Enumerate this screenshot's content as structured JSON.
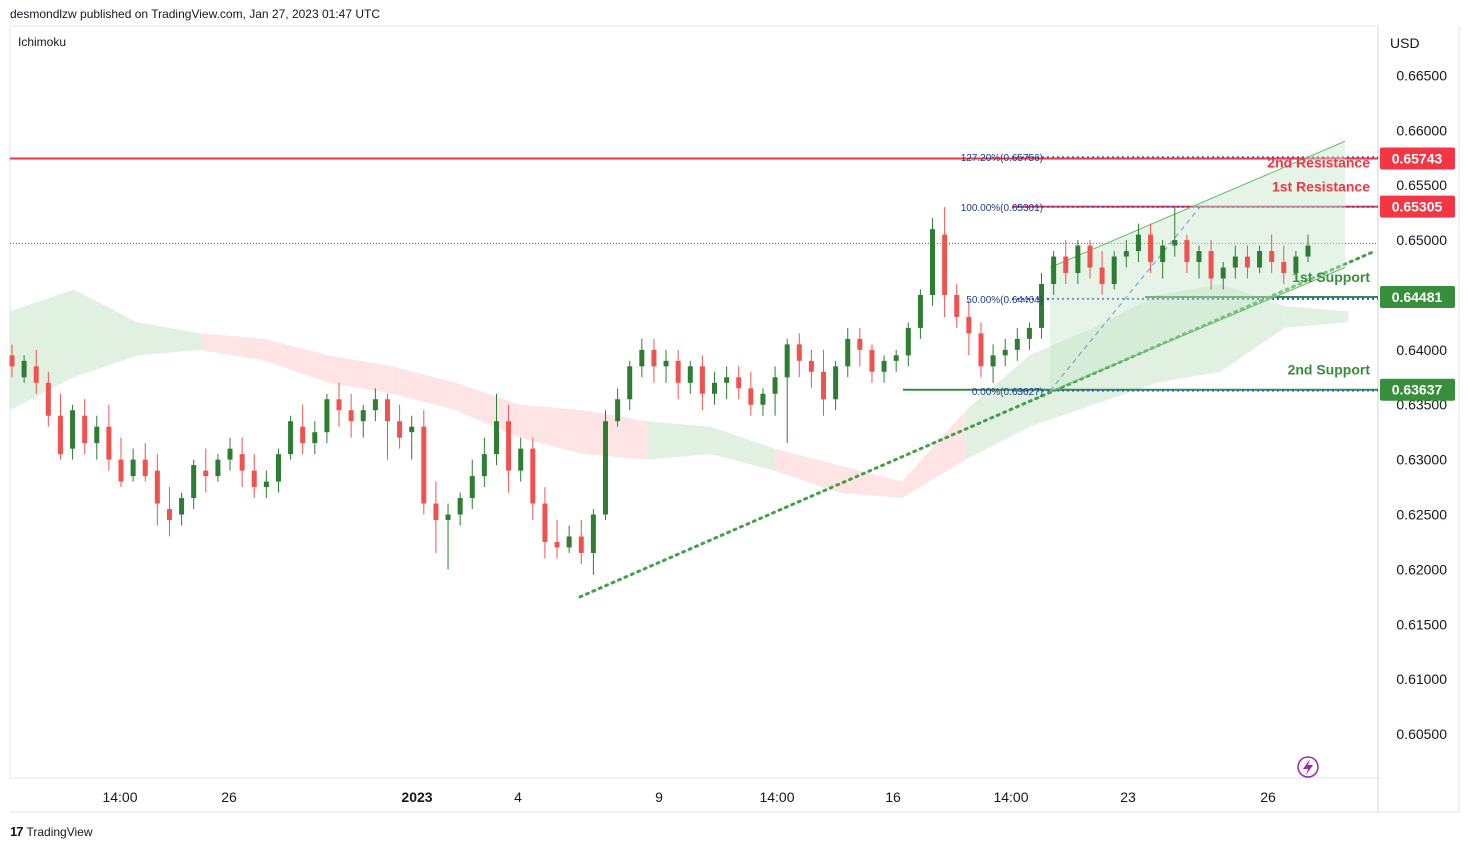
{
  "header": {
    "text": "desmondlzw published on TradingView.com, Jan 27, 2023 01:47 UTC"
  },
  "indicator": {
    "label": "Ichimoku"
  },
  "price_axis": {
    "currency": "USD",
    "ticks": [
      "0.66500",
      "0.66000",
      "0.65500",
      "0.65000",
      "0.64000",
      "0.63500",
      "0.63000",
      "0.62500",
      "0.62000",
      "0.61500",
      "0.61000",
      "0.60500"
    ]
  },
  "time_axis": {
    "labels": [
      "14:00",
      "26",
      "2023",
      "4",
      "9",
      "14:00",
      "16",
      "14:00",
      "23",
      "26"
    ]
  },
  "footer": {
    "brand": "TradingView"
  },
  "colors": {
    "up": "#2e7d32",
    "down": "#ef5350",
    "resistance": "#f23645",
    "support": "#388e3c",
    "fib": "#1e53e5",
    "cloud_green": "#c8e6c9",
    "cloud_red": "#ffcdd2"
  },
  "levels": {
    "r2": {
      "label": "2nd Resistance",
      "badge": "0.65743"
    },
    "r1": {
      "label": "1st Resistance",
      "badge": "0.65305"
    },
    "s1": {
      "label": "1st Support",
      "badge": "0.64481"
    },
    "s2": {
      "label": "2nd Support",
      "badge": "0.63637"
    }
  },
  "fib": {
    "f1272": "127.20%(0.65756)",
    "f100": "100.00%(0.65301)",
    "f50": "50.00%(0.64464)",
    "f0": "0.00%(0.63627)"
  },
  "chart_data": {
    "type": "candlestick",
    "symbol_currency": "USD",
    "y_range": [
      0.601,
      0.6695
    ],
    "series": [
      {
        "name": "",
        "values": [
          [
            0.6395,
            0.6405,
            0.6385,
            0.6375
          ],
          [
            0.6375,
            0.6395,
            0.639,
            0.637
          ],
          [
            0.6385,
            0.64,
            0.637,
            0.636
          ],
          [
            0.637,
            0.638,
            0.634,
            0.633
          ],
          [
            0.634,
            0.636,
            0.6305,
            0.63
          ],
          [
            0.631,
            0.635,
            0.6345,
            0.63
          ],
          [
            0.634,
            0.6355,
            0.6315,
            0.6305
          ],
          [
            0.6315,
            0.634,
            0.633,
            0.63
          ],
          [
            0.633,
            0.635,
            0.63,
            0.629
          ],
          [
            0.63,
            0.632,
            0.628,
            0.6275
          ],
          [
            0.6285,
            0.631,
            0.63,
            0.628
          ],
          [
            0.63,
            0.6315,
            0.6285,
            0.628
          ],
          [
            0.629,
            0.6305,
            0.626,
            0.624
          ],
          [
            0.6255,
            0.6275,
            0.6245,
            0.623
          ],
          [
            0.625,
            0.627,
            0.6265,
            0.624
          ],
          [
            0.6265,
            0.63,
            0.6295,
            0.6255
          ],
          [
            0.629,
            0.631,
            0.6285,
            0.627
          ],
          [
            0.6285,
            0.6305,
            0.63,
            0.628
          ],
          [
            0.63,
            0.632,
            0.631,
            0.629
          ],
          [
            0.6305,
            0.632,
            0.629,
            0.6275
          ],
          [
            0.629,
            0.6305,
            0.6275,
            0.6265
          ],
          [
            0.6275,
            0.629,
            0.628,
            0.6265
          ],
          [
            0.628,
            0.631,
            0.6305,
            0.627
          ],
          [
            0.6305,
            0.634,
            0.6335,
            0.63
          ],
          [
            0.633,
            0.635,
            0.6315,
            0.6305
          ],
          [
            0.6315,
            0.6335,
            0.6325,
            0.6305
          ],
          [
            0.6325,
            0.636,
            0.6355,
            0.6315
          ],
          [
            0.6355,
            0.637,
            0.6345,
            0.633
          ],
          [
            0.6345,
            0.636,
            0.6335,
            0.632
          ],
          [
            0.6335,
            0.635,
            0.6345,
            0.632
          ],
          [
            0.6345,
            0.6365,
            0.6355,
            0.6335
          ],
          [
            0.6355,
            0.636,
            0.6335,
            0.63
          ],
          [
            0.6335,
            0.635,
            0.632,
            0.631
          ],
          [
            0.6325,
            0.634,
            0.633,
            0.63
          ],
          [
            0.633,
            0.6345,
            0.626,
            0.625
          ],
          [
            0.626,
            0.628,
            0.6245,
            0.6215
          ],
          [
            0.6245,
            0.626,
            0.625,
            0.62
          ],
          [
            0.625,
            0.627,
            0.6265,
            0.624
          ],
          [
            0.6265,
            0.63,
            0.6285,
            0.6255
          ],
          [
            0.6285,
            0.632,
            0.6305,
            0.6275
          ],
          [
            0.6305,
            0.636,
            0.6335,
            0.6295
          ],
          [
            0.6335,
            0.635,
            0.629,
            0.627
          ],
          [
            0.629,
            0.632,
            0.631,
            0.628
          ],
          [
            0.631,
            0.632,
            0.626,
            0.6245
          ],
          [
            0.626,
            0.6275,
            0.6225,
            0.621
          ],
          [
            0.6225,
            0.6245,
            0.622,
            0.621
          ],
          [
            0.622,
            0.624,
            0.623,
            0.6215
          ],
          [
            0.623,
            0.6245,
            0.6215,
            0.6205
          ],
          [
            0.6215,
            0.6255,
            0.625,
            0.6195
          ],
          [
            0.625,
            0.6345,
            0.6335,
            0.6245
          ],
          [
            0.6335,
            0.6365,
            0.6355,
            0.633
          ],
          [
            0.6355,
            0.639,
            0.6385,
            0.6345
          ],
          [
            0.6385,
            0.641,
            0.64,
            0.6375
          ],
          [
            0.64,
            0.641,
            0.6385,
            0.637
          ],
          [
            0.6385,
            0.64,
            0.639,
            0.637
          ],
          [
            0.639,
            0.64,
            0.637,
            0.6355
          ],
          [
            0.637,
            0.639,
            0.6385,
            0.636
          ],
          [
            0.6385,
            0.6395,
            0.636,
            0.6345
          ],
          [
            0.636,
            0.638,
            0.637,
            0.635
          ],
          [
            0.637,
            0.6385,
            0.6375,
            0.6355
          ],
          [
            0.6375,
            0.6385,
            0.6365,
            0.6355
          ],
          [
            0.6365,
            0.638,
            0.635,
            0.634
          ],
          [
            0.635,
            0.6365,
            0.636,
            0.634
          ],
          [
            0.636,
            0.6385,
            0.6375,
            0.634
          ],
          [
            0.6375,
            0.641,
            0.6405,
            0.6315
          ],
          [
            0.6405,
            0.6415,
            0.639,
            0.6375
          ],
          [
            0.639,
            0.64,
            0.638,
            0.6365
          ],
          [
            0.638,
            0.64,
            0.6355,
            0.634
          ],
          [
            0.6355,
            0.639,
            0.6385,
            0.6345
          ],
          [
            0.6385,
            0.642,
            0.641,
            0.6375
          ],
          [
            0.641,
            0.642,
            0.64,
            0.6385
          ],
          [
            0.64,
            0.6405,
            0.638,
            0.637
          ],
          [
            0.638,
            0.6395,
            0.639,
            0.637
          ],
          [
            0.639,
            0.64,
            0.6395,
            0.638
          ],
          [
            0.6395,
            0.6425,
            0.642,
            0.6385
          ],
          [
            0.642,
            0.6455,
            0.645,
            0.641
          ],
          [
            0.645,
            0.652,
            0.651,
            0.644
          ],
          [
            0.6505,
            0.653,
            0.645,
            0.643
          ],
          [
            0.645,
            0.646,
            0.643,
            0.642
          ],
          [
            0.643,
            0.6445,
            0.6415,
            0.6395
          ],
          [
            0.6415,
            0.6425,
            0.6385,
            0.6375
          ],
          [
            0.6385,
            0.6405,
            0.6395,
            0.637
          ],
          [
            0.6395,
            0.641,
            0.64,
            0.6385
          ],
          [
            0.64,
            0.642,
            0.641,
            0.639
          ],
          [
            0.641,
            0.6425,
            0.642,
            0.64
          ],
          [
            0.642,
            0.647,
            0.646,
            0.641
          ],
          [
            0.646,
            0.649,
            0.6485,
            0.645
          ],
          [
            0.6485,
            0.65,
            0.647,
            0.646
          ],
          [
            0.647,
            0.65,
            0.6495,
            0.646
          ],
          [
            0.6495,
            0.65,
            0.6475,
            0.6465
          ],
          [
            0.6475,
            0.649,
            0.646,
            0.645
          ],
          [
            0.646,
            0.649,
            0.6485,
            0.6455
          ],
          [
            0.6485,
            0.65,
            0.649,
            0.6475
          ],
          [
            0.649,
            0.6515,
            0.6505,
            0.648
          ],
          [
            0.6505,
            0.6515,
            0.648,
            0.647
          ],
          [
            0.648,
            0.65,
            0.6495,
            0.6465
          ],
          [
            0.6495,
            0.653,
            0.65,
            0.6485
          ],
          [
            0.65,
            0.6505,
            0.648,
            0.647
          ],
          [
            0.648,
            0.6495,
            0.649,
            0.6465
          ],
          [
            0.649,
            0.65,
            0.6465,
            0.6455
          ],
          [
            0.6465,
            0.648,
            0.6475,
            0.6455
          ],
          [
            0.6475,
            0.6495,
            0.6485,
            0.6465
          ],
          [
            0.6485,
            0.6495,
            0.6475,
            0.6465
          ],
          [
            0.6475,
            0.6495,
            0.649,
            0.647
          ],
          [
            0.649,
            0.6505,
            0.648,
            0.647
          ],
          [
            0.648,
            0.6495,
            0.647,
            0.646
          ],
          [
            0.647,
            0.649,
            0.6485,
            0.6465
          ],
          [
            0.6485,
            0.6505,
            0.6495,
            0.648
          ]
        ]
      }
    ],
    "horizontal_levels": [
      {
        "name": "2nd Resistance",
        "value": 0.65743
      },
      {
        "name": "1st Resistance",
        "value": 0.65305
      },
      {
        "name": "1st Support",
        "value": 0.64481
      },
      {
        "name": "2nd Support",
        "value": 0.63637
      }
    ],
    "fibonacci": [
      {
        "level": "127.20%",
        "value": 0.65756
      },
      {
        "level": "100.00%",
        "value": 0.65301
      },
      {
        "level": "50.00%",
        "value": 0.64464
      },
      {
        "level": "0.00%",
        "value": 0.63627
      }
    ],
    "ichimoku_cloud": [
      {
        "upper": 0.6435,
        "lower": 0.6345,
        "bull": true
      },
      {
        "upper": 0.6455,
        "lower": 0.6375,
        "bull": true
      },
      {
        "upper": 0.6425,
        "lower": 0.6395,
        "bull": true
      },
      {
        "upper": 0.6415,
        "lower": 0.64,
        "bull": false
      },
      {
        "upper": 0.641,
        "lower": 0.639,
        "bull": false
      },
      {
        "upper": 0.6395,
        "lower": 0.637,
        "bull": false
      },
      {
        "upper": 0.6385,
        "lower": 0.636,
        "bull": false
      },
      {
        "upper": 0.637,
        "lower": 0.6345,
        "bull": false
      },
      {
        "upper": 0.635,
        "lower": 0.632,
        "bull": false
      },
      {
        "upper": 0.6345,
        "lower": 0.6305,
        "bull": false
      },
      {
        "upper": 0.6335,
        "lower": 0.63,
        "bull": true
      },
      {
        "upper": 0.633,
        "lower": 0.6305,
        "bull": true
      },
      {
        "upper": 0.631,
        "lower": 0.629,
        "bull": false
      },
      {
        "upper": 0.6295,
        "lower": 0.627,
        "bull": false
      },
      {
        "upper": 0.628,
        "lower": 0.6265,
        "bull": false
      },
      {
        "upper": 0.6345,
        "lower": 0.63,
        "bull": true
      },
      {
        "upper": 0.6395,
        "lower": 0.633,
        "bull": true
      },
      {
        "upper": 0.642,
        "lower": 0.635,
        "bull": true
      },
      {
        "upper": 0.645,
        "lower": 0.637,
        "bull": true
      },
      {
        "upper": 0.646,
        "lower": 0.638,
        "bull": true
      },
      {
        "upper": 0.644,
        "lower": 0.642,
        "bull": true
      },
      {
        "upper": 0.6435,
        "lower": 0.6425,
        "bull": true
      }
    ],
    "trendlines": [
      {
        "name": "dotted uptrend",
        "from": [
          0.6175
        ],
        "to": [
          0.649
        ]
      },
      {
        "name": "channel upper",
        "from": [
          0.6475
        ],
        "to": [
          0.659
        ]
      },
      {
        "name": "channel lower",
        "from": [
          0.6362
        ],
        "to": [
          0.6475
        ]
      }
    ]
  }
}
